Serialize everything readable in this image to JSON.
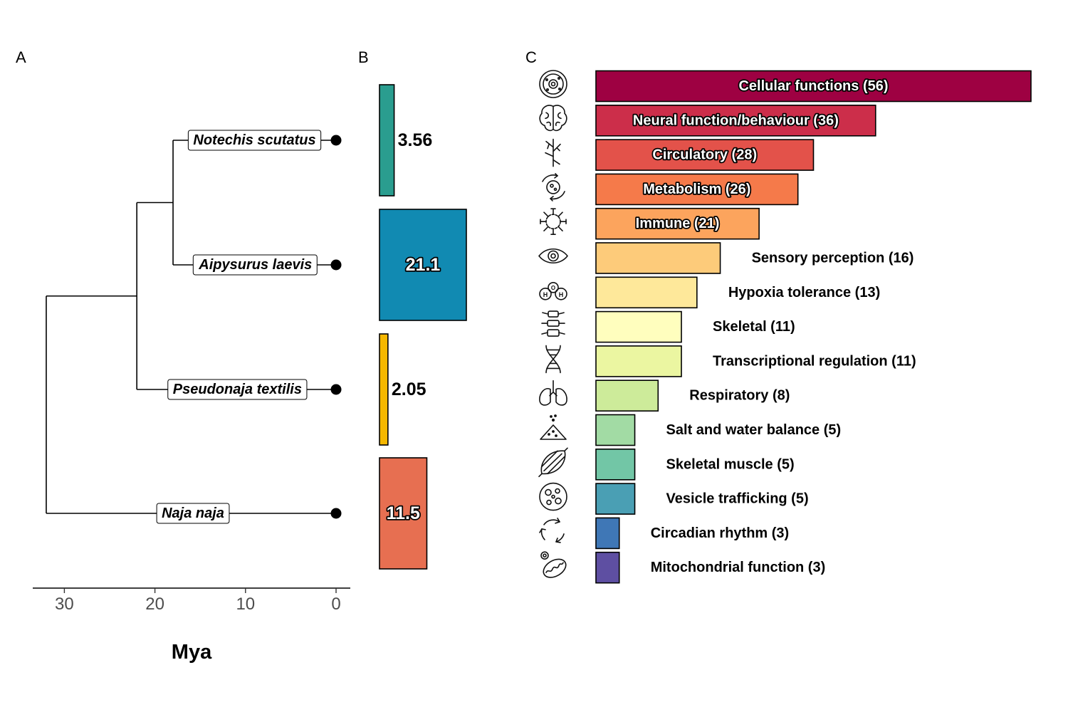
{
  "panels": {
    "a": "A",
    "b": "B",
    "c": "C"
  },
  "chart_data": [
    {
      "type": "tree",
      "panel": "A",
      "xlabel": "Mya",
      "xlim": [
        33.5,
        -1.5
      ],
      "xticks": [
        30,
        20,
        10,
        0
      ],
      "tips": [
        {
          "name": "Notechis scutatus",
          "time": 0
        },
        {
          "name": "Aipysurus laevis",
          "time": 0
        },
        {
          "name": "Pseudonaja textilis",
          "time": 0
        },
        {
          "name": "Naja naja",
          "time": 0
        }
      ],
      "nodes": [
        {
          "children": [
            "Notechis scutatus",
            "Aipysurus laevis"
          ],
          "time": 18.0
        },
        {
          "children": [
            "Notechis/Aipysurus clade",
            "Pseudonaja textilis"
          ],
          "time": 22.0
        },
        {
          "children": [
            "Notechis/Aipysurus/Pseudonaja clade",
            "Naja naja"
          ],
          "time": 32.0
        }
      ],
      "branch_labels": [
        {
          "tip": "Notechis scutatus",
          "time": 9.0
        },
        {
          "tip": "Aipysurus laevis",
          "time": 8.9
        },
        {
          "tip": "Pseudonaja textilis",
          "time": 10.9
        },
        {
          "tip": "Naja naja",
          "time": 15.8
        }
      ]
    },
    {
      "type": "bar",
      "panel": "B",
      "categories": [
        "Notechis scutatus",
        "Aipysurus laevis",
        "Pseudonaja textilis",
        "Naja naja"
      ],
      "values": [
        3.56,
        21.1,
        2.05,
        11.5
      ],
      "labels": [
        "3.56",
        "21.1",
        "2.05",
        "11.5"
      ],
      "colors": [
        "#2a9d8f",
        "#118ab2",
        "#f5b700",
        "#e76f51"
      ],
      "label_inside": [
        false,
        true,
        false,
        true
      ],
      "xlim": [
        0,
        22
      ]
    },
    {
      "type": "bar",
      "panel": "C",
      "orientation": "horizontal",
      "xlim": [
        0,
        56
      ],
      "categories": [
        {
          "label": "Cellular functions (56)",
          "value": 56,
          "color": "#9e0142",
          "icon": "cell-icon",
          "inside": true
        },
        {
          "label": "Neural function/behaviour (36)",
          "value": 36,
          "color": "#cc2e4a",
          "icon": "brain-icon",
          "inside": true
        },
        {
          "label": "Circulatory (28)",
          "value": 28,
          "color": "#e3524a",
          "icon": "vessel-icon",
          "inside": true
        },
        {
          "label": "Metabolism (26)",
          "value": 26,
          "color": "#f57a4a",
          "icon": "metabolism-icon",
          "inside": true
        },
        {
          "label": "Immune (21)",
          "value": 21,
          "color": "#fca45d",
          "icon": "virus-icon",
          "inside": true
        },
        {
          "label": "Sensory perception (16)",
          "value": 16,
          "color": "#fdcb7a",
          "icon": "eye-icon",
          "inside": false
        },
        {
          "label": "Hypoxia tolerance (13)",
          "value": 13,
          "color": "#fee89a",
          "icon": "oxygen-icon",
          "inside": false
        },
        {
          "label": "Skeletal (11)",
          "value": 11,
          "color": "#fffebe",
          "icon": "spine-icon",
          "inside": false
        },
        {
          "label": "Transcriptional regulation (11)",
          "value": 11,
          "color": "#ebf6a1",
          "icon": "dna-icon",
          "inside": false
        },
        {
          "label": "Respiratory (8)",
          "value": 8,
          "color": "#cdeb9a",
          "icon": "lungs-icon",
          "inside": false
        },
        {
          "label": "Salt and water balance (5)",
          "value": 5,
          "color": "#a2dba4",
          "icon": "salt-icon",
          "inside": false
        },
        {
          "label": "Skeletal muscle (5)",
          "value": 5,
          "color": "#72c6a6",
          "icon": "muscle-icon",
          "inside": false
        },
        {
          "label": "Vesicle trafficking (5)",
          "value": 5,
          "color": "#4a9fb4",
          "icon": "vesicle-icon",
          "inside": false
        },
        {
          "label": "Circadian rhythm (3)",
          "value": 3,
          "color": "#3f77b6",
          "icon": "cycle-icon",
          "inside": false
        },
        {
          "label": "Mitochondrial function (3)",
          "value": 3,
          "color": "#5e4fa2",
          "icon": "mitochondria-icon",
          "inside": false
        }
      ]
    }
  ]
}
